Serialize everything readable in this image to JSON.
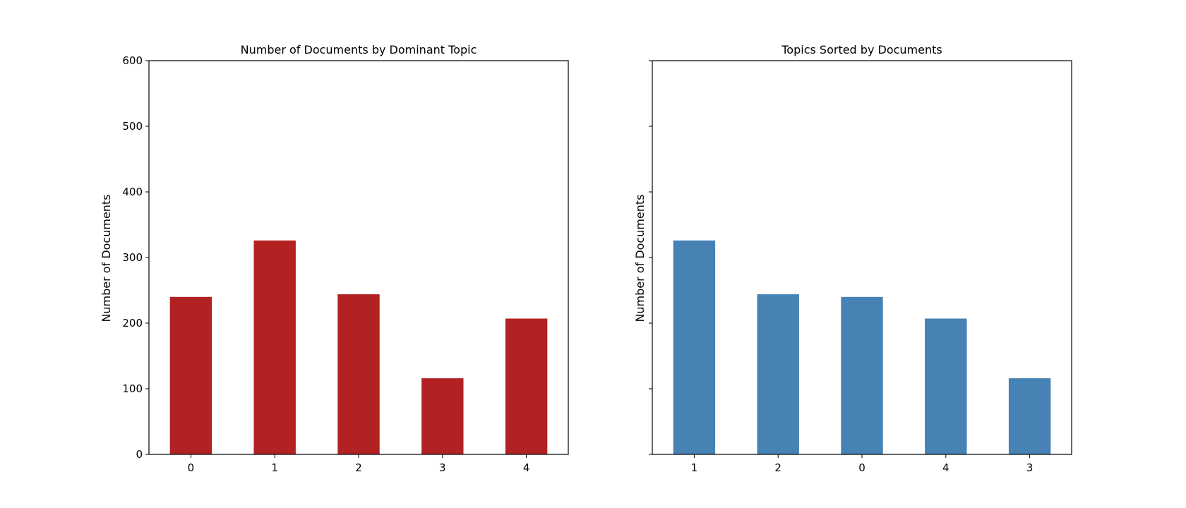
{
  "chart_data": [
    {
      "type": "bar",
      "title": "Number of Documents by Dominant Topic",
      "xlabel": "",
      "ylabel": "Number of Documents",
      "categories": [
        "0",
        "1",
        "2",
        "3",
        "4"
      ],
      "values": [
        240,
        326,
        244,
        116,
        207
      ],
      "ylim": [
        0,
        600
      ],
      "yticks": [
        "0",
        "100",
        "200",
        "300",
        "400",
        "500",
        "600"
      ],
      "color": "#b22222",
      "grid": false
    },
    {
      "type": "bar",
      "title": "Topics Sorted by Documents",
      "xlabel": "",
      "ylabel": "Number of Documents",
      "categories": [
        "1",
        "2",
        "0",
        "4",
        "3"
      ],
      "values": [
        326,
        244,
        240,
        207,
        116
      ],
      "ylim": [
        0,
        600
      ],
      "yticks": [],
      "color": "#4682b4",
      "grid": false
    }
  ]
}
